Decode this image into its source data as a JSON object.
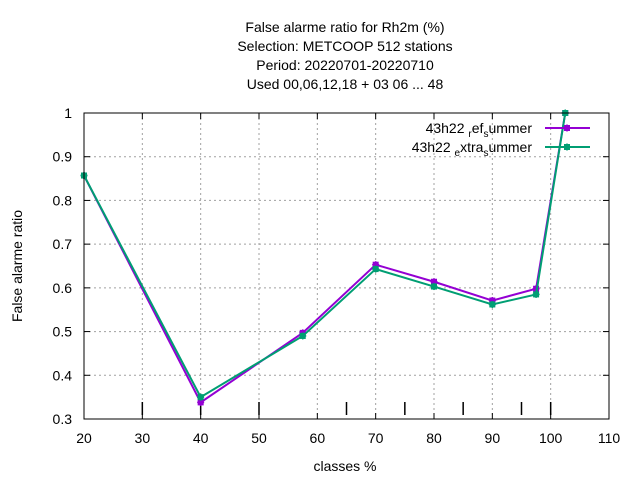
{
  "chart_data": {
    "type": "line",
    "title_lines": [
      "False alarme ratio  for Rh2m (%)",
      "Selection: METCOOP    512 stations",
      "Period: 20220701-20220710",
      "Used  00,06,12,18  + 03 06 ... 48"
    ],
    "xlabel": "classes %",
    "ylabel": "False alarme ratio",
    "xlim": [
      20,
      110
    ],
    "ylim": [
      0.3,
      1.0
    ],
    "x_ticks": [
      "20",
      "30",
      "40",
      "50",
      "60",
      "70",
      "80",
      "90",
      "100",
      "110"
    ],
    "y_ticks": [
      "0.3",
      "0.4",
      "0.5",
      "0.6",
      "0.7",
      "0.8",
      "0.9",
      "1"
    ],
    "grid": true,
    "legend_position": "top-right",
    "class_bounds": [
      30,
      40,
      50,
      65,
      75,
      85,
      95,
      100
    ],
    "series": [
      {
        "name_main": "43h22",
        "name_parts": [
          {
            "text": "r",
            "sub": true
          },
          {
            "text": "ef",
            "sub": false
          },
          {
            "text": "s",
            "sub": true
          },
          {
            "text": "ummer",
            "sub": false
          }
        ],
        "color": "#9400d3",
        "x": [
          20,
          40,
          57.5,
          70,
          80,
          90,
          97.5,
          102.5
        ],
        "y": [
          0.857,
          0.338,
          0.497,
          0.653,
          0.614,
          0.571,
          0.598,
          1.0
        ]
      },
      {
        "name_main": "43h22",
        "name_parts": [
          {
            "text": "e",
            "sub": true
          },
          {
            "text": "xtra",
            "sub": false
          },
          {
            "text": "s",
            "sub": true
          },
          {
            "text": "ummer",
            "sub": false
          }
        ],
        "color": "#009e73",
        "x": [
          20,
          40,
          57.5,
          70,
          80,
          90,
          97.5,
          102.5
        ],
        "y": [
          0.857,
          0.35,
          0.49,
          0.643,
          0.603,
          0.562,
          0.585,
          1.0
        ]
      }
    ]
  }
}
